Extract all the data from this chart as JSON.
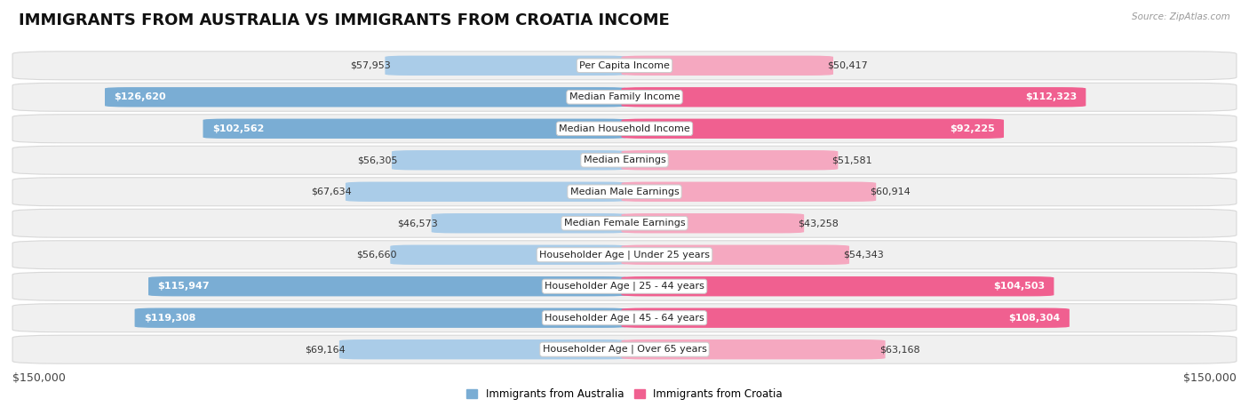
{
  "title": "IMMIGRANTS FROM AUSTRALIA VS IMMIGRANTS FROM CROATIA INCOME",
  "source": "Source: ZipAtlas.com",
  "categories": [
    "Per Capita Income",
    "Median Family Income",
    "Median Household Income",
    "Median Earnings",
    "Median Male Earnings",
    "Median Female Earnings",
    "Householder Age | Under 25 years",
    "Householder Age | 25 - 44 years",
    "Householder Age | 45 - 64 years",
    "Householder Age | Over 65 years"
  ],
  "australia_values": [
    57953,
    126620,
    102562,
    56305,
    67634,
    46573,
    56660,
    115947,
    119308,
    69164
  ],
  "croatia_values": [
    50417,
    112323,
    92225,
    51581,
    60914,
    43258,
    54343,
    104503,
    108304,
    63168
  ],
  "australia_labels": [
    "$57,953",
    "$126,620",
    "$102,562",
    "$56,305",
    "$67,634",
    "$46,573",
    "$56,660",
    "$115,947",
    "$119,308",
    "$69,164"
  ],
  "croatia_labels": [
    "$50,417",
    "$112,323",
    "$92,225",
    "$51,581",
    "$60,914",
    "$43,258",
    "$54,343",
    "$104,503",
    "$108,304",
    "$63,168"
  ],
  "australia_color": "#7aadd4",
  "australia_color_light": "#aacce8",
  "croatia_color": "#f06090",
  "croatia_color_light": "#f5a8c0",
  "row_bg_color": "#f0f0f0",
  "row_border_color": "#d8d8d8",
  "bar_height": 0.62,
  "max_value": 150000,
  "background_color": "#ffffff",
  "legend_australia": "Immigrants from Australia",
  "legend_croatia": "Immigrants from Croatia",
  "axis_label_left": "$150,000",
  "axis_label_right": "$150,000",
  "title_fontsize": 13,
  "label_fontsize": 8,
  "category_fontsize": 8,
  "inside_threshold": 80000
}
